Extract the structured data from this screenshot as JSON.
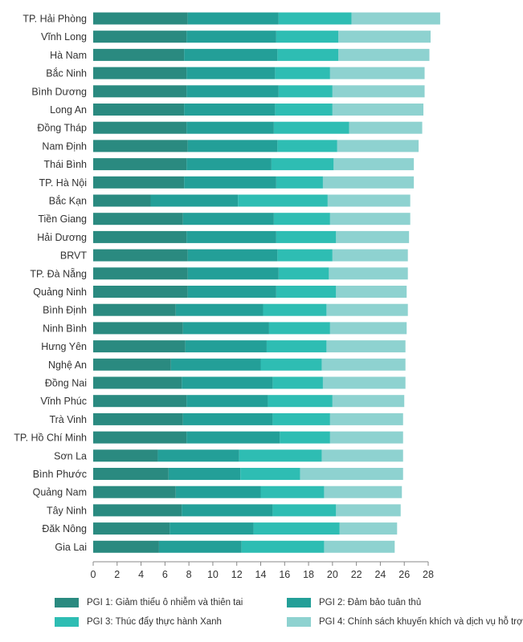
{
  "chart_data": {
    "type": "bar",
    "orientation": "horizontal",
    "stacked": true,
    "categories": [
      "TP. Hải Phòng",
      "Vĩnh Long",
      "Hà Nam",
      "Bắc Ninh",
      "Bình Dương",
      "Long An",
      "Đồng Tháp",
      "Nam Định",
      "Thái Bình",
      "TP. Hà Nội",
      "Bắc Kạn",
      "Tiền Giang",
      "Hải Dương",
      "BRVT",
      "TP. Đà Nẵng",
      "Quảng Ninh",
      "Bình Định",
      "Ninh Bình",
      "Hưng Yên",
      "Nghệ An",
      "Đồng Nai",
      "Vĩnh Phúc",
      "Trà Vinh",
      "TP. Hồ Chí Minh",
      "Sơn La",
      "Bình Phước",
      "Quảng Nam",
      "Tây Ninh",
      "Đăk Nông",
      "Gia Lai"
    ],
    "series": [
      {
        "name": "PGI 1: Giảm thiểu ô nhiễm và thiên tai",
        "color": "#2a8a80",
        "values": [
          7.9,
          7.8,
          7.6,
          7.8,
          7.8,
          7.6,
          7.8,
          7.9,
          7.8,
          7.6,
          4.8,
          7.5,
          7.8,
          7.9,
          7.9,
          7.9,
          6.9,
          7.5,
          7.7,
          6.5,
          7.4,
          7.8,
          7.5,
          7.8,
          5.4,
          6.3,
          6.9,
          7.4,
          6.4,
          5.5
        ]
      },
      {
        "name": "PGI 2: Đảm bảo tuân thủ",
        "color": "#239f98",
        "values": [
          7.6,
          7.5,
          7.8,
          7.4,
          7.7,
          7.6,
          7.3,
          7.5,
          7.1,
          7.7,
          7.3,
          7.6,
          7.5,
          7.5,
          7.6,
          7.4,
          7.3,
          7.2,
          6.8,
          7.5,
          7.6,
          6.8,
          7.5,
          7.8,
          6.8,
          6.0,
          7.1,
          7.6,
          7.0,
          6.9
        ]
      },
      {
        "name": "PGI 3: Thúc đẩy thực hành Xanh",
        "color": "#2ebdb3",
        "values": [
          6.1,
          5.2,
          5.1,
          4.6,
          4.5,
          4.8,
          6.3,
          5.0,
          5.2,
          3.9,
          7.5,
          4.7,
          5.0,
          4.6,
          4.2,
          5.0,
          5.3,
          5.1,
          5.0,
          5.1,
          4.2,
          5.4,
          4.8,
          4.2,
          6.9,
          5.0,
          5.3,
          5.3,
          7.2,
          6.9
        ]
      },
      {
        "name": "PGI 4: Chính sách khuyến khích và dịch vụ hỗ trợ",
        "color": "#8ed2d0",
        "values": [
          7.4,
          7.7,
          7.6,
          7.9,
          7.7,
          7.6,
          6.1,
          6.8,
          6.7,
          7.6,
          6.9,
          6.7,
          6.1,
          6.3,
          6.6,
          5.9,
          6.8,
          6.4,
          6.6,
          7.0,
          6.9,
          6.0,
          6.1,
          6.1,
          6.8,
          8.6,
          6.5,
          5.4,
          4.8,
          5.9
        ]
      }
    ],
    "xlim": [
      0,
      28
    ],
    "xticks": [
      0,
      2,
      4,
      6,
      8,
      10,
      12,
      14,
      16,
      18,
      20,
      22,
      24,
      26,
      28
    ],
    "title": "",
    "xlabel": "",
    "ylabel": "",
    "legend_position": "bottom"
  }
}
